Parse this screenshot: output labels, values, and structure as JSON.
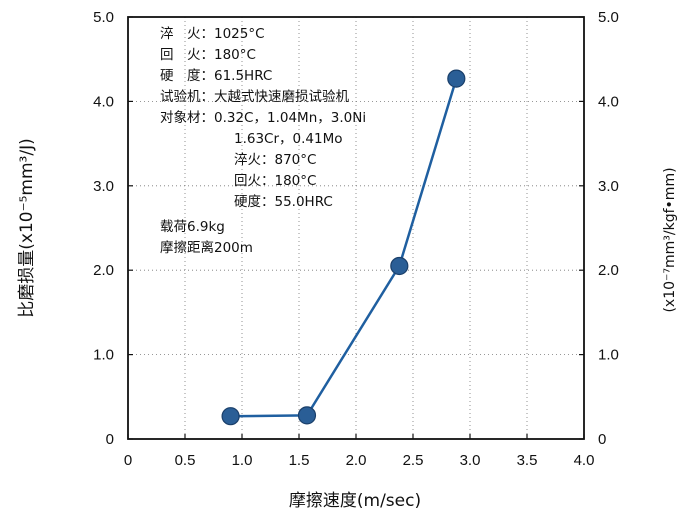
{
  "chart_data": {
    "type": "line",
    "x": [
      0.9,
      1.57,
      2.38,
      2.88
    ],
    "y": [
      0.27,
      0.28,
      2.05,
      4.27
    ],
    "xlim": [
      0,
      4.0
    ],
    "ylim": [
      0,
      5.0
    ],
    "x_ticks": [
      "0",
      "0.5",
      "1.0",
      "1.5",
      "2.0",
      "2.5",
      "3.0",
      "3.5",
      "4.0"
    ],
    "y_ticks_left": [
      "0",
      "1.0",
      "2.0",
      "3.0",
      "4.0",
      "5.0"
    ],
    "y_ticks_right": [
      "0",
      "1.0",
      "2.0",
      "3.0",
      "4.0",
      "5.0"
    ],
    "xlabel": "摩擦速度(m/sec)",
    "ylabel_left": "比磨损量(x10⁻⁵mm³/J)",
    "ylabel_right": "(x10⁻⁷mm³/kgf•mm)",
    "grid": "dotted",
    "line_color": "#1f5fa0",
    "marker_color": "#2a5e96",
    "annotations": [
      "淬　火：1025°C",
      "回　火：180°C",
      "硬　度：61.5HRC",
      "试验机：大越式快速磨损试验机",
      "对象材：0.32C，1.04Mn，3.0Ni",
      "1.63Cr，0.41Mo",
      "淬火：870°C",
      "回火：180°C",
      "硬度：55.0HRC",
      "载荷6.9kg",
      "摩擦距离200m"
    ]
  }
}
